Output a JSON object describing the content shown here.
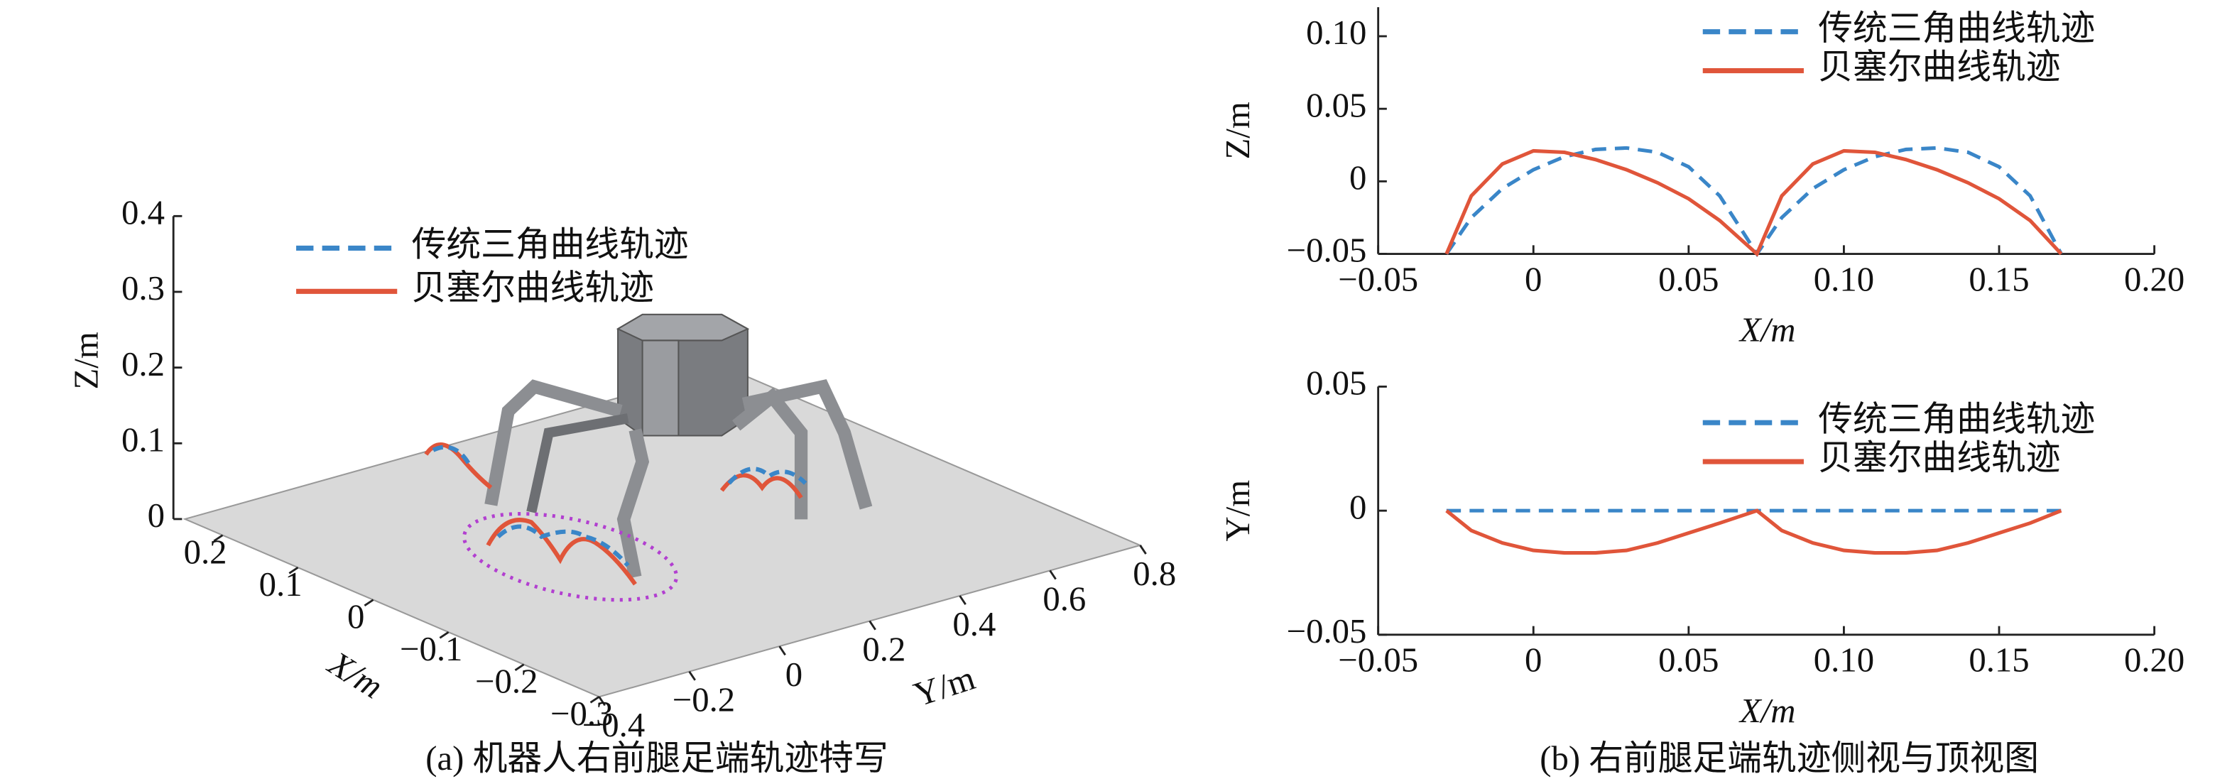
{
  "chart_data": [
    {
      "type": "3d-trajectory",
      "caption": "(a) 机器人右前腿足端轨迹特写",
      "x_label": "X/m",
      "y_label": "Y/m",
      "z_label": "Z/m",
      "xlim": [
        -0.3,
        0.25
      ],
      "ylim": [
        -0.4,
        0.8
      ],
      "zlim": [
        0,
        0.4
      ],
      "xticks": [
        0.2,
        0.1,
        0,
        {
          "value": -0.1,
          "label": "−0.1"
        },
        {
          "value": -0.2,
          "label": "−0.2"
        },
        {
          "value": -0.3,
          "label": "−0.3"
        }
      ],
      "yticks": [
        {
          "value": -0.4,
          "label": "−0.4"
        },
        {
          "value": -0.2,
          "label": "−0.2"
        },
        0,
        0.2,
        0.4,
        0.6,
        0.8
      ],
      "zticks": [
        0,
        0.1,
        0.2,
        0.3,
        0.4
      ],
      "series": [
        {
          "name": "传统三角曲线轨迹",
          "color": "#3a86c8",
          "line_style": "dashed"
        },
        {
          "name": "贝塞尔曲线轨迹",
          "color": "#e0553a",
          "line_style": "solid"
        }
      ]
    },
    {
      "type": "line",
      "caption": "(b) 右前腿足端轨迹侧视与顶视图",
      "x_label": "X/m",
      "y_label": "Z/m",
      "x": [
        -0.028,
        -0.02,
        -0.01,
        0,
        0.01,
        0.02,
        0.03,
        0.04,
        0.05,
        0.06,
        0.072,
        0.08,
        0.09,
        0.1,
        0.11,
        0.12,
        0.13,
        0.14,
        0.15,
        0.16,
        0.17
      ],
      "xlim": [
        -0.05,
        0.2
      ],
      "ylim": [
        -0.05,
        0.12
      ],
      "xticks": [
        {
          "value": -0.05,
          "label": "−0.05"
        },
        0,
        0.05,
        {
          "value": 0.1,
          "label": "0.10"
        },
        0.15,
        {
          "value": 0.2,
          "label": "0.20"
        }
      ],
      "yticks": [
        {
          "value": -0.05,
          "label": "−0.05"
        },
        0,
        0.05,
        {
          "value": 0.1,
          "label": "0.10"
        }
      ],
      "series": [
        {
          "name": "传统三角曲线轨迹",
          "color": "#3a86c8",
          "line_style": "dashed",
          "values": [
            -0.05,
            -0.025,
            -0.005,
            0.008,
            0.017,
            0.022,
            0.023,
            0.02,
            0.01,
            -0.01,
            -0.05,
            -0.025,
            -0.005,
            0.008,
            0.017,
            0.022,
            0.023,
            0.02,
            0.01,
            -0.01,
            -0.05
          ]
        },
        {
          "name": "贝塞尔曲线轨迹",
          "color": "#e0553a",
          "line_style": "solid",
          "values": [
            -0.05,
            -0.01,
            0.012,
            0.021,
            0.02,
            0.015,
            0.008,
            -0.001,
            -0.012,
            -0.027,
            -0.05,
            -0.01,
            0.012,
            0.021,
            0.02,
            0.015,
            0.008,
            -0.001,
            -0.012,
            -0.027,
            -0.05
          ]
        }
      ]
    },
    {
      "type": "line",
      "x_label": "X/m",
      "y_label": "Y/m",
      "x": [
        -0.028,
        -0.02,
        -0.01,
        0,
        0.01,
        0.02,
        0.03,
        0.04,
        0.05,
        0.06,
        0.072,
        0.08,
        0.09,
        0.1,
        0.11,
        0.12,
        0.13,
        0.14,
        0.15,
        0.16,
        0.17
      ],
      "xlim": [
        -0.05,
        0.2
      ],
      "ylim": [
        -0.05,
        0.05
      ],
      "xticks": [
        {
          "value": -0.05,
          "label": "−0.05"
        },
        0,
        0.05,
        {
          "value": 0.1,
          "label": "0.10"
        },
        0.15,
        {
          "value": 0.2,
          "label": "0.20"
        }
      ],
      "yticks": [
        {
          "value": -0.05,
          "label": "−0.05"
        },
        0,
        0.05
      ],
      "series": [
        {
          "name": "传统三角曲线轨迹",
          "color": "#3a86c8",
          "line_style": "dashed",
          "values": [
            0,
            0,
            0,
            0,
            0,
            0,
            0,
            0,
            0,
            0,
            0,
            0,
            0,
            0,
            0,
            0,
            0,
            0,
            0,
            0,
            0
          ]
        },
        {
          "name": "贝塞尔曲线轨迹",
          "color": "#e0553a",
          "line_style": "solid",
          "values": [
            0,
            -0.008,
            -0.013,
            -0.016,
            -0.017,
            -0.017,
            -0.016,
            -0.013,
            -0.009,
            -0.005,
            0,
            -0.008,
            -0.013,
            -0.016,
            -0.017,
            -0.017,
            -0.016,
            -0.013,
            -0.009,
            -0.005,
            0
          ]
        }
      ]
    }
  ]
}
